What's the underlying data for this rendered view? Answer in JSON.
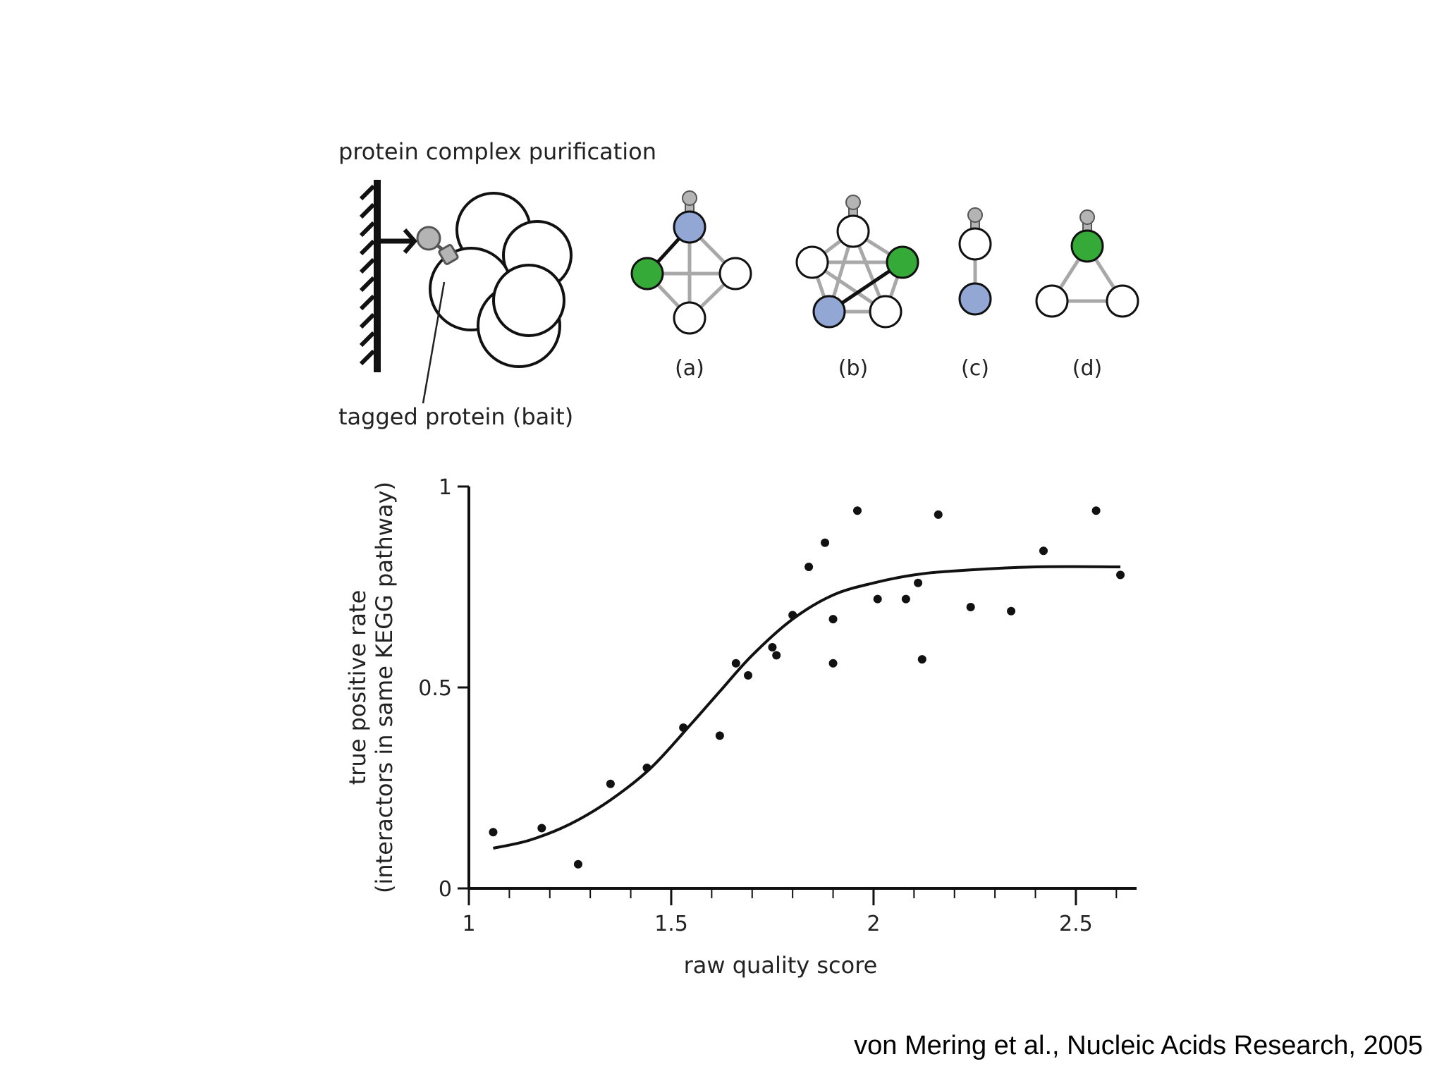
{
  "diagram": {
    "title": "protein complex purification",
    "bait_label": "tagged protein (bait)",
    "panel_labels": [
      "(a)",
      "(b)",
      "(c)",
      "(d)"
    ],
    "colors": {
      "blue": "#93a7d4",
      "green": "#35aa38",
      "tag": "#b4b4b4",
      "edge": "#a8a8a8"
    }
  },
  "chart_data": {
    "type": "scatter",
    "title": "",
    "xlabel": "raw quality score",
    "ylabel_line1": "true positive rate",
    "ylabel_line2": "(interactors in same KEGG pathway)",
    "xlim": [
      1,
      2.65
    ],
    "ylim": [
      0,
      1
    ],
    "x_ticks": [
      1,
      1.5,
      2,
      2.5
    ],
    "x_tick_labels": [
      "1",
      "1.5",
      "2",
      "2.5"
    ],
    "y_ticks": [
      0,
      0.5,
      1
    ],
    "y_tick_labels": [
      "0",
      "0.5",
      "1"
    ],
    "grid": false,
    "points": [
      {
        "x": 1.06,
        "y": 0.14
      },
      {
        "x": 1.18,
        "y": 0.15
      },
      {
        "x": 1.27,
        "y": 0.06
      },
      {
        "x": 1.35,
        "y": 0.26
      },
      {
        "x": 1.44,
        "y": 0.3
      },
      {
        "x": 1.53,
        "y": 0.4
      },
      {
        "x": 1.62,
        "y": 0.38
      },
      {
        "x": 1.66,
        "y": 0.56
      },
      {
        "x": 1.69,
        "y": 0.53
      },
      {
        "x": 1.75,
        "y": 0.6
      },
      {
        "x": 1.76,
        "y": 0.58
      },
      {
        "x": 1.8,
        "y": 0.68
      },
      {
        "x": 1.84,
        "y": 0.8
      },
      {
        "x": 1.88,
        "y": 0.86
      },
      {
        "x": 1.9,
        "y": 0.67
      },
      {
        "x": 1.9,
        "y": 0.56
      },
      {
        "x": 1.96,
        "y": 0.94
      },
      {
        "x": 2.01,
        "y": 0.72
      },
      {
        "x": 2.08,
        "y": 0.72
      },
      {
        "x": 2.11,
        "y": 0.76
      },
      {
        "x": 2.12,
        "y": 0.57
      },
      {
        "x": 2.16,
        "y": 0.93
      },
      {
        "x": 2.24,
        "y": 0.7
      },
      {
        "x": 2.34,
        "y": 0.69
      },
      {
        "x": 2.42,
        "y": 0.84
      },
      {
        "x": 2.55,
        "y": 0.94
      },
      {
        "x": 2.61,
        "y": 0.78
      }
    ],
    "fit_curve": [
      {
        "x": 1.06,
        "y": 0.1
      },
      {
        "x": 1.15,
        "y": 0.12
      },
      {
        "x": 1.25,
        "y": 0.16
      },
      {
        "x": 1.35,
        "y": 0.22
      },
      {
        "x": 1.45,
        "y": 0.3
      },
      {
        "x": 1.55,
        "y": 0.41
      },
      {
        "x": 1.62,
        "y": 0.49
      },
      {
        "x": 1.7,
        "y": 0.58
      },
      {
        "x": 1.8,
        "y": 0.67
      },
      {
        "x": 1.9,
        "y": 0.73
      },
      {
        "x": 2.0,
        "y": 0.76
      },
      {
        "x": 2.1,
        "y": 0.78
      },
      {
        "x": 2.2,
        "y": 0.79
      },
      {
        "x": 2.4,
        "y": 0.8
      },
      {
        "x": 2.61,
        "y": 0.8
      }
    ]
  },
  "citation": "von Mering et al., Nucleic Acids Research, 2005"
}
